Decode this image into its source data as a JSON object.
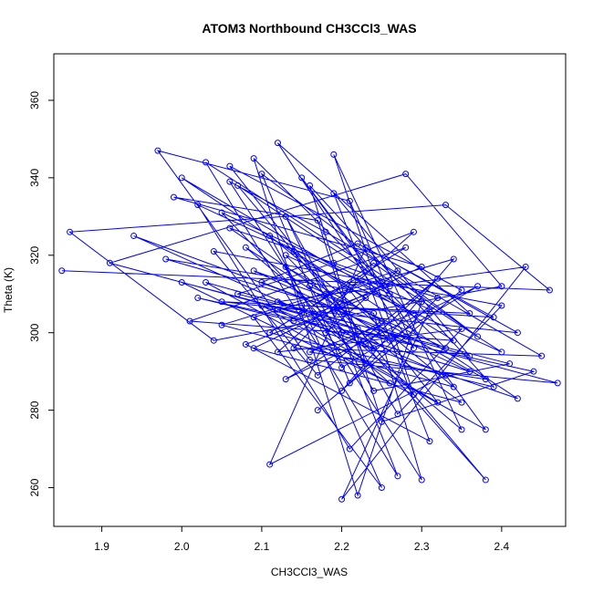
{
  "chart_data": {
    "type": "line",
    "title": "ATOM3 Northbound CH3CCl3_WAS",
    "xlabel": "CH3CCl3_WAS",
    "ylabel": "Theta (K)",
    "xlim": [
      1.84,
      2.48
    ],
    "ylim": [
      250,
      372
    ],
    "xticks": [
      1.9,
      2.0,
      2.1,
      2.2,
      2.3,
      2.4
    ],
    "xtick_labels": [
      "1.9",
      "2.0",
      "2.1",
      "2.2",
      "2.3",
      "2.4"
    ],
    "yticks": [
      260,
      280,
      300,
      320,
      340,
      360
    ],
    "ytick_labels": [
      "260",
      "280",
      "300",
      "320",
      "340",
      "360"
    ],
    "grid": false,
    "series": [
      {
        "color": "#0000ff",
        "marker": "open-circle",
        "points": [
          [
            1.85,
            316
          ],
          [
            2.46,
            311
          ],
          [
            2.33,
            333
          ],
          [
            1.86,
            326
          ],
          [
            2.04,
            298
          ],
          [
            2.4,
            312
          ],
          [
            2.28,
            341
          ],
          [
            1.91,
            318
          ],
          [
            2.47,
            287
          ],
          [
            2.16,
            293
          ],
          [
            1.97,
            347
          ],
          [
            2.21,
            334
          ],
          [
            2.29,
            296
          ],
          [
            2.12,
            349
          ],
          [
            2.36,
            305
          ],
          [
            2.05,
            308
          ],
          [
            2.42,
            300
          ],
          [
            2.23,
            322
          ],
          [
            2.11,
            266
          ],
          [
            2.33,
            289
          ],
          [
            1.94,
            325
          ],
          [
            2.19,
            306
          ],
          [
            2.38,
            262
          ],
          [
            2.07,
            338
          ],
          [
            2.26,
            312
          ],
          [
            2.14,
            303
          ],
          [
            2.02,
            309
          ],
          [
            2.44,
            290
          ],
          [
            2.25,
            277
          ],
          [
            2.17,
            329
          ],
          [
            1.99,
            335
          ],
          [
            2.3,
            317
          ],
          [
            2.09,
            296
          ],
          [
            2.35,
            282
          ],
          [
            2.22,
            301
          ],
          [
            2.13,
            320
          ],
          [
            2.4,
            295
          ],
          [
            2.03,
            344
          ],
          [
            2.27,
            263
          ],
          [
            2.18,
            310
          ],
          [
            2.06,
            327
          ],
          [
            2.32,
            309
          ],
          [
            2.21,
            287
          ],
          [
            2.1,
            341
          ],
          [
            2.37,
            299
          ],
          [
            2.24,
            318
          ],
          [
            2.15,
            305
          ],
          [
            2.0,
            313
          ],
          [
            2.29,
            284
          ],
          [
            2.19,
            346
          ],
          [
            2.35,
            275
          ],
          [
            2.08,
            322
          ],
          [
            2.26,
            298
          ],
          [
            2.12,
            308
          ],
          [
            2.43,
            317
          ],
          [
            2.2,
            257
          ],
          [
            2.31,
            306
          ],
          [
            2.05,
            331
          ],
          [
            2.23,
            292
          ],
          [
            2.16,
            338
          ],
          [
            2.39,
            286
          ],
          [
            2.11,
            300
          ],
          [
            2.28,
            322
          ],
          [
            2.01,
            303
          ],
          [
            2.34,
            298
          ],
          [
            2.22,
            313
          ],
          [
            2.14,
            296
          ],
          [
            2.45,
            294
          ],
          [
            2.18,
            326
          ],
          [
            2.06,
            339
          ],
          [
            2.3,
            262
          ],
          [
            2.24,
            305
          ],
          [
            2.09,
            316
          ],
          [
            2.36,
            290
          ],
          [
            2.2,
            300
          ],
          [
            2.13,
            330
          ],
          [
            2.27,
            279
          ],
          [
            2.4,
            307
          ],
          [
            2.04,
            321
          ],
          [
            2.17,
            289
          ],
          [
            2.32,
            314
          ],
          [
            2.23,
            297
          ],
          [
            2.1,
            307
          ],
          [
            2.38,
            275
          ],
          [
            2.15,
            340
          ],
          [
            2.26,
            310
          ],
          [
            2.02,
            333
          ],
          [
            2.21,
            270
          ],
          [
            2.35,
            301
          ],
          [
            2.12,
            295
          ],
          [
            2.29,
            326
          ],
          [
            2.19,
            318
          ],
          [
            2.07,
            310
          ],
          [
            2.41,
            292
          ],
          [
            2.24,
            285
          ],
          [
            2.16,
            312
          ],
          [
            2.33,
            296
          ],
          [
            2.09,
            345
          ],
          [
            2.22,
            258
          ],
          [
            2.3,
            308
          ],
          [
            1.98,
            319
          ],
          [
            2.25,
            303
          ],
          [
            2.13,
            288
          ],
          [
            2.37,
            312
          ],
          [
            2.2,
            291
          ],
          [
            2.11,
            325
          ],
          [
            2.34,
            286
          ],
          [
            2.05,
            302
          ],
          [
            2.27,
            316
          ],
          [
            2.18,
            300
          ],
          [
            2.42,
            283
          ],
          [
            2.14,
            321
          ],
          [
            2.23,
            309
          ],
          [
            2.08,
            297
          ],
          [
            2.31,
            272
          ],
          [
            2.19,
            336
          ],
          [
            2.36,
            294
          ],
          [
            2.03,
            313
          ],
          [
            2.26,
            287
          ],
          [
            2.15,
            307
          ],
          [
            2.39,
            304
          ],
          [
            2.22,
            323
          ],
          [
            2.1,
            313
          ],
          [
            2.28,
            299
          ],
          [
            2.17,
            280
          ],
          [
            2.35,
            311
          ],
          [
            2.06,
            343
          ],
          [
            2.24,
            296
          ],
          [
            2.12,
            306
          ],
          [
            2.32,
            282
          ],
          [
            2.21,
            311
          ],
          [
            2.0,
            340
          ],
          [
            2.29,
            305
          ],
          [
            2.16,
            295
          ],
          [
            2.38,
            288
          ],
          [
            2.13,
            317
          ],
          [
            2.25,
            260
          ],
          [
            2.09,
            304
          ],
          [
            2.34,
            319
          ],
          [
            2.2,
            285
          ]
        ]
      }
    ]
  }
}
